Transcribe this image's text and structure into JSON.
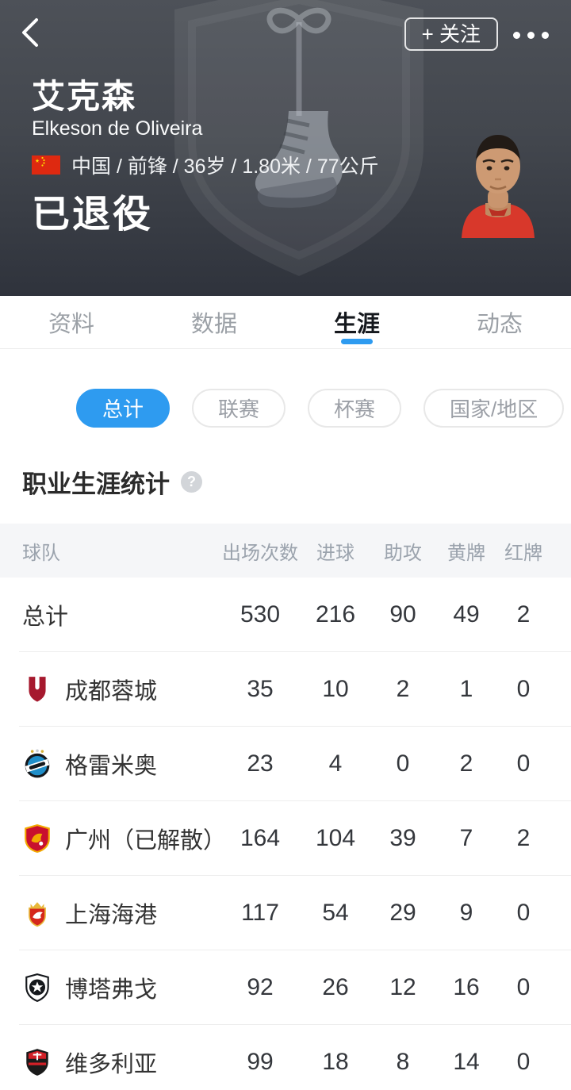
{
  "header": {
    "follow_button_label": "+ 关注",
    "player_name_cn": "艾克森",
    "player_name_en": "Elkeson de Oliveira",
    "info_line": "中国 / 前锋 / 36岁 / 1.80米 / 77公斤",
    "status": "已退役",
    "flag_icon": "china-flag"
  },
  "tabs": [
    {
      "key": "profile",
      "label": "资料",
      "active": false
    },
    {
      "key": "data",
      "label": "数据",
      "active": false
    },
    {
      "key": "career",
      "label": "生涯",
      "active": true
    },
    {
      "key": "news",
      "label": "动态",
      "active": false
    }
  ],
  "filters": [
    {
      "key": "total",
      "label": "总计",
      "active": true
    },
    {
      "key": "league",
      "label": "联赛",
      "active": false
    },
    {
      "key": "cup",
      "label": "杯赛",
      "active": false
    },
    {
      "key": "national",
      "label": "国家/地区",
      "active": false
    }
  ],
  "section_title": "职业生涯统计",
  "help_icon": "?",
  "table": {
    "columns": [
      "球队",
      "出场次数",
      "进球",
      "助攻",
      "黄牌",
      "红牌"
    ],
    "rows": [
      {
        "key": "total",
        "team": "总计",
        "badge": null,
        "appearances": 530,
        "goals": 216,
        "assists": 90,
        "yellow_cards": 49,
        "red_cards": 2
      },
      {
        "key": "chengdu-rongcheng",
        "team": "成都蓉城",
        "badge": "chengdu-rongcheng",
        "appearances": 35,
        "goals": 10,
        "assists": 2,
        "yellow_cards": 1,
        "red_cards": 0
      },
      {
        "key": "gremio",
        "team": "格雷米奥",
        "badge": "gremio",
        "appearances": 23,
        "goals": 4,
        "assists": 0,
        "yellow_cards": 2,
        "red_cards": 0
      },
      {
        "key": "guangzhou",
        "team": "广州（已解散）",
        "badge": "guangzhou",
        "appearances": 164,
        "goals": 104,
        "assists": 39,
        "yellow_cards": 7,
        "red_cards": 2
      },
      {
        "key": "shanghai-port",
        "team": "上海海港",
        "badge": "shanghai-port",
        "appearances": 117,
        "goals": 54,
        "assists": 29,
        "yellow_cards": 9,
        "red_cards": 0
      },
      {
        "key": "botafogo",
        "team": "博塔弗戈",
        "badge": "botafogo",
        "appearances": 92,
        "goals": 26,
        "assists": 12,
        "yellow_cards": 16,
        "red_cards": 0
      },
      {
        "key": "vitoria",
        "team": "维多利亚",
        "badge": "vitoria",
        "appearances": 99,
        "goals": 18,
        "assists": 8,
        "yellow_cards": 14,
        "red_cards": 0
      }
    ]
  },
  "colors": {
    "accent_blue": "#2e9bf0",
    "header_top": "#4d5158",
    "header_bottom": "#2f333c",
    "flag_red": "#de2910",
    "table_header_bg": "#f5f6f8"
  }
}
